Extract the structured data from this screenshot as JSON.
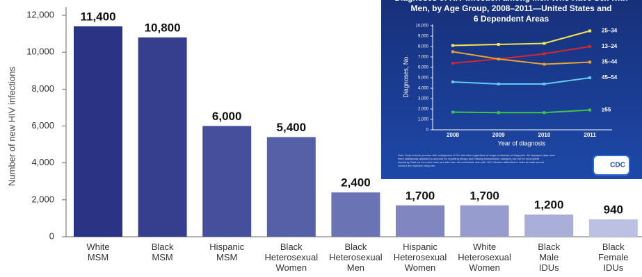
{
  "chart_data": [
    {
      "type": "bar",
      "y_label": "Number of new HIV infections",
      "categories": [
        "White MSM",
        "Black MSM",
        "Hispanic MSM",
        "Black Heterosexual Women",
        "Black Heterosexual Men",
        "Hispanic Heterosexual Women",
        "White Heterosexual Women",
        "Black Male IDUs",
        "Black Female IDUs"
      ],
      "values": [
        11400,
        10800,
        6000,
        5400,
        2400,
        1700,
        1700,
        1200,
        940
      ],
      "value_labels": [
        "11,400",
        "10,800",
        "6,000",
        "5,400",
        "2,400",
        "1,700",
        "1,700",
        "1,200",
        "940"
      ],
      "colors": [
        "#2b3484",
        "#363f8e",
        "#454f9b",
        "#5560a6",
        "#6a73b3",
        "#8087c0",
        "#969cce",
        "#aaafd9",
        "#bcc0e3"
      ],
      "ylim": [
        0,
        12000
      ],
      "yticks": [
        0,
        {
          "value": 2000,
          "label": "2,000"
        },
        {
          "value": 4000,
          "label": "4,000"
        },
        {
          "value": 6000,
          "label": "6,000"
        },
        {
          "value": 8000,
          "label": "8,000"
        },
        {
          "value": 10000,
          "label": "10,000"
        },
        {
          "value": 12000,
          "label": "12,000"
        }
      ]
    },
    {
      "type": "line",
      "title": [
        "Diagnoses of HIV Infection among Men Who Have Sex with",
        "Men, by Age Group, 2008–2011—United States and",
        "6 Dependent Areas"
      ],
      "y_label": "Diagnoses, No.",
      "x_label": "Year of diagnosis",
      "categories": [
        "2008",
        "2009",
        "2010",
        "2011"
      ],
      "series": [
        {
          "name": "25–34",
          "color": "#f4e84c",
          "values": [
            8100,
            8200,
            8300,
            9500
          ]
        },
        {
          "name": "13–24",
          "color": "#d8262e",
          "values": [
            6400,
            6800,
            7300,
            8000
          ]
        },
        {
          "name": "35–44",
          "color": "#e9a232",
          "values": [
            7500,
            6800,
            6300,
            6500
          ]
        },
        {
          "name": "45–54",
          "color": "#62caf2",
          "values": [
            4600,
            4400,
            4400,
            5000
          ]
        },
        {
          "name": "≥55",
          "color": "#3ec83e",
          "values": [
            1700,
            1650,
            1650,
            1900
          ]
        }
      ],
      "ylim": [
        0,
        10000
      ],
      "yticks": [
        0,
        {
          "value": 1000,
          "label": "1,000"
        },
        {
          "value": 2000,
          "label": "2,000"
        },
        {
          "value": 3000,
          "label": "3,000"
        },
        {
          "value": 4000,
          "label": "4,000"
        },
        {
          "value": 5000,
          "label": "5,000"
        },
        {
          "value": 6000,
          "label": "6,000"
        },
        {
          "value": 7000,
          "label": "7,000"
        },
        {
          "value": 8000,
          "label": "8,000"
        },
        {
          "value": 9000,
          "label": "9,000"
        },
        {
          "value": 10000,
          "label": "10,000"
        }
      ],
      "note": [
        "Note. Data include persons with a diagnosis of HIV infection regardless of stage of disease at diagnosis. All displayed data have",
        "been statistically adjusted to account for reporting delays and missing transmission category, but not for incomplete",
        "reporting. Data on men who have sex with men do not include men with HIV infection attributed to male-to-male sexual",
        "contact and injection drug use."
      ],
      "logo": "CDC"
    }
  ]
}
